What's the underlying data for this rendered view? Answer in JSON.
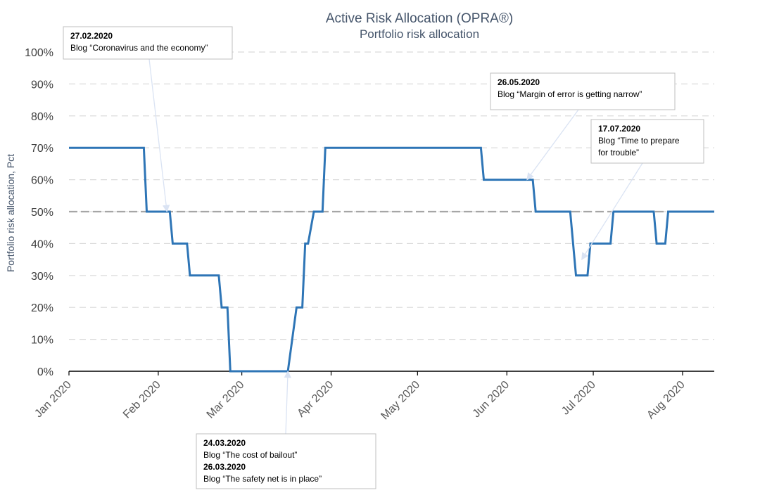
{
  "chart_data": {
    "type": "line",
    "title": "Active Risk Allocation (OPRA®)",
    "subtitle": "Portfolio risk allocation",
    "ylabel": "Portfolio risk allocation, Pct",
    "xlabel": "",
    "ylim": [
      0,
      100
    ],
    "y_ticks": [
      "0%",
      "10%",
      "20%",
      "30%",
      "40%",
      "50%",
      "60%",
      "70%",
      "80%",
      "90%",
      "100%"
    ],
    "x_ticks": [
      {
        "label": "Jan 2020",
        "date": "2020-01-01"
      },
      {
        "label": "Feb 2020",
        "date": "2020-02-01"
      },
      {
        "label": "Mar 2020",
        "date": "2020-03-01"
      },
      {
        "label": "Apr 2020",
        "date": "2020-04-01"
      },
      {
        "label": "May 2020",
        "date": "2020-05-01"
      },
      {
        "label": "Jun 2020",
        "date": "2020-06-01"
      },
      {
        "label": "Jul 2020",
        "date": "2020-07-01"
      },
      {
        "label": "Aug 2020",
        "date": "2020-08-01"
      }
    ],
    "x_range": [
      "2020-01-01",
      "2020-08-12"
    ],
    "grid": "horizontal dashed",
    "reference_line": 50,
    "colors": {
      "line": "#2e75b6",
      "reference": "#a6a6a6",
      "grid": "#d9d9d9",
      "arrow": "#dae3f3"
    },
    "series": [
      {
        "points": [
          [
            "2020-01-01",
            70
          ],
          [
            "2020-01-27",
            70
          ],
          [
            "2020-01-28",
            50
          ],
          [
            "2020-02-05",
            50
          ],
          [
            "2020-02-06",
            40
          ],
          [
            "2020-02-11",
            40
          ],
          [
            "2020-02-12",
            30
          ],
          [
            "2020-02-22",
            30
          ],
          [
            "2020-02-23",
            20
          ],
          [
            "2020-02-25",
            20
          ],
          [
            "2020-02-26",
            0
          ],
          [
            "2020-03-17",
            0
          ],
          [
            "2020-03-20",
            20
          ],
          [
            "2020-03-22",
            20
          ],
          [
            "2020-03-23",
            40
          ],
          [
            "2020-03-24",
            40
          ],
          [
            "2020-03-26",
            50
          ],
          [
            "2020-03-29",
            50
          ],
          [
            "2020-03-30",
            70
          ],
          [
            "2020-05-23",
            70
          ],
          [
            "2020-05-24",
            60
          ],
          [
            "2020-06-10",
            60
          ],
          [
            "2020-06-11",
            50
          ],
          [
            "2020-06-23",
            50
          ],
          [
            "2020-06-25",
            30
          ],
          [
            "2020-06-29",
            30
          ],
          [
            "2020-06-30",
            40
          ],
          [
            "2020-07-07",
            40
          ],
          [
            "2020-07-08",
            50
          ],
          [
            "2020-07-22",
            50
          ],
          [
            "2020-07-23",
            40
          ],
          [
            "2020-07-26",
            40
          ],
          [
            "2020-07-27",
            50
          ],
          [
            "2020-08-12",
            50
          ]
        ]
      }
    ],
    "annotations": [
      {
        "id": "feb",
        "date_label": "27.02.2020",
        "lines": [
          "Blog “Coronavirus and the economy”"
        ],
        "arrow_to": [
          "2020-02-04",
          50
        ]
      },
      {
        "id": "may",
        "date_label": "26.05.2020",
        "lines": [
          "Blog “Margin of error is getting narrow”"
        ],
        "arrow_to": [
          "2020-06-08",
          60
        ]
      },
      {
        "id": "jul",
        "date_label": "17.07.2020",
        "lines": [
          "Blog “Time to prepare",
          "for trouble”"
        ],
        "arrow_to": [
          "2020-06-27",
          35
        ]
      },
      {
        "id": "mar",
        "date_label": "24.03.2020",
        "lines": [
          "Blog “The cost of bailout”"
        ],
        "date_label_2": "26.03.2020",
        "lines_2": [
          "Blog “The safety net is in place”"
        ],
        "arrow_to": [
          "2020-03-17",
          0
        ]
      }
    ]
  }
}
